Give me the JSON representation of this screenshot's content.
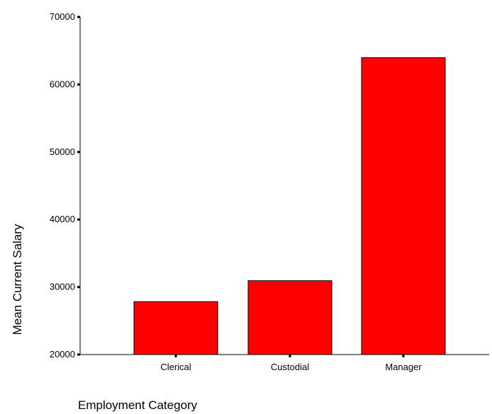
{
  "chart_data": {
    "type": "bar",
    "categories": [
      "Clerical",
      "Custodial",
      "Manager"
    ],
    "values": [
      27839,
      30939,
      63978
    ],
    "xlabel": "Employment Category",
    "ylabel": "Mean Current Salary",
    "ylim": [
      20000,
      70000
    ],
    "yticks": [
      "20000",
      "30000",
      "40000",
      "50000",
      "60000",
      "70000"
    ],
    "grid": false,
    "legend": "none",
    "bar_color": "#ff0000",
    "bar_edge_color": "#000000"
  }
}
